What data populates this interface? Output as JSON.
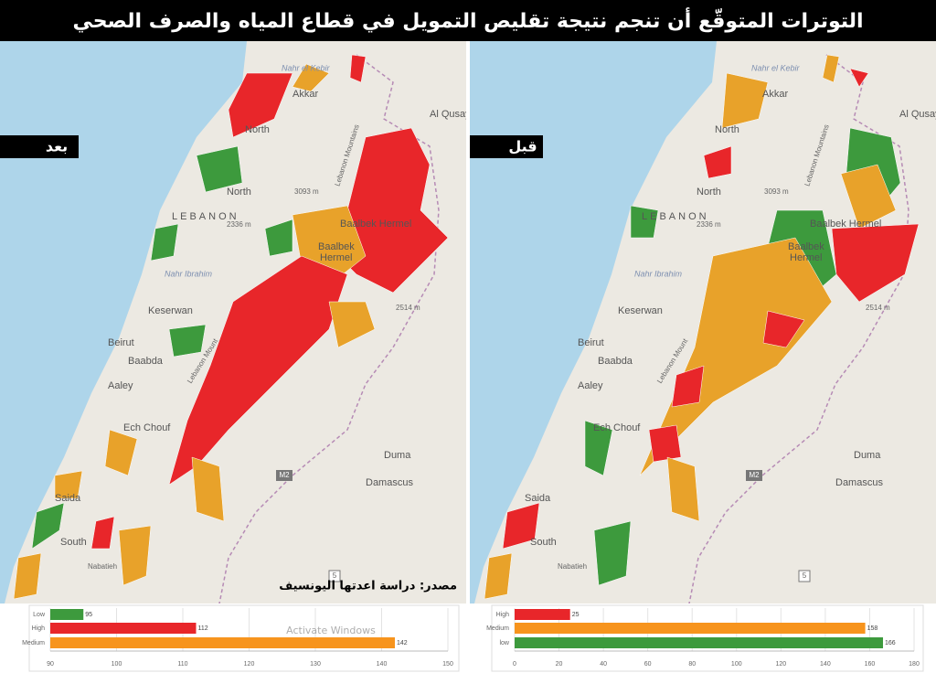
{
  "title": "التوترات المتوقّع أن تنجم نتيجة تقليص التمويل في قطاع المياه والصرف الصحي",
  "panels": [
    {
      "label": "بعد"
    },
    {
      "label": "قبل"
    }
  ],
  "map_labels": [
    "Nahr el Kebir",
    "Akkar",
    "Al Qusayr",
    "North",
    "3093 m",
    "LEBANON",
    "2336 m",
    "Baalbek Hermel",
    "Baalbek",
    "Hermel",
    "Nahr Ibrahim",
    "2514 m",
    "Keserwan",
    "Beirut",
    "Baabda",
    "Aaley",
    "Ech Chouf",
    "Duma",
    "M2",
    "Damascus",
    "Saida",
    "South",
    "Nabatieh",
    "5",
    "Lebanon Mountains",
    "Lebanon Mount"
  ],
  "source": "مصدر: دراسة اعدتها اليونسيف",
  "watermark": "Activate Windows",
  "chart_data": [
    {
      "type": "bar",
      "orientation": "horizontal",
      "categories": [
        "Low",
        "High",
        "Medium"
      ],
      "values": [
        95,
        112,
        142
      ],
      "colors": [
        "#3d9a3d",
        "#e8262a",
        "#f7941d"
      ],
      "xlim": [
        90,
        150
      ],
      "xticks": [
        90,
        100,
        110,
        120,
        130,
        140,
        150
      ],
      "grid": true
    },
    {
      "type": "bar",
      "orientation": "horizontal",
      "categories": [
        "High",
        "Medium",
        "low"
      ],
      "values": [
        25,
        158,
        166
      ],
      "colors": [
        "#e8262a",
        "#f7941d",
        "#3d9a3d"
      ],
      "xlim": [
        0,
        180
      ],
      "xticks": [
        0,
        20,
        40,
        60,
        80,
        100,
        120,
        140,
        160,
        180
      ],
      "grid": true
    }
  ]
}
